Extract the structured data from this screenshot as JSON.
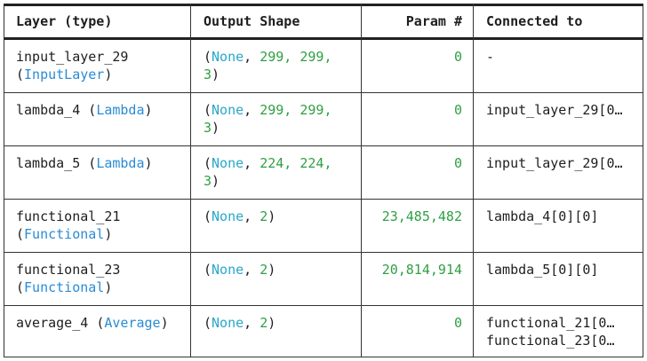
{
  "headers": {
    "layer": "Layer (type)",
    "output_shape": "Output Shape",
    "params": "Param #",
    "connected": "Connected to"
  },
  "rows": [
    {
      "layer_name": "input_layer_29",
      "layer_open": "(",
      "layer_type": "InputLayer",
      "layer_close": ")",
      "shape_none": "None",
      "shape_line1_rest": "299, 299,",
      "shape_line2": "3",
      "params": "0",
      "connected": "-",
      "connected2": ""
    },
    {
      "layer_name": "lambda_4",
      "layer_open": "(",
      "layer_type": "Lambda",
      "layer_close": ")",
      "shape_none": "None",
      "shape_line1_rest": "299, 299,",
      "shape_line2": "3",
      "params": "0",
      "connected": "input_layer_29[0…",
      "connected2": ""
    },
    {
      "layer_name": "lambda_5",
      "layer_open": "(",
      "layer_type": "Lambda",
      "layer_close": ")",
      "shape_none": "None",
      "shape_line1_rest": "224, 224,",
      "shape_line2": "3",
      "params": "0",
      "connected": "input_layer_29[0…",
      "connected2": ""
    },
    {
      "layer_name": "functional_21",
      "layer_open": "(",
      "layer_type": "Functional",
      "layer_close": ")",
      "shape_none": "None",
      "shape_line1_rest": "2",
      "shape_line2": "",
      "params": "23,485,482",
      "connected": "lambda_4[0][0]",
      "connected2": ""
    },
    {
      "layer_name": "functional_23",
      "layer_open": "(",
      "layer_type": "Functional",
      "layer_close": ")",
      "shape_none": "None",
      "shape_line1_rest": "2",
      "shape_line2": "",
      "params": "20,814,914",
      "connected": "lambda_5[0][0]",
      "connected2": ""
    },
    {
      "layer_name": "average_4",
      "layer_open": "(",
      "layer_type": "Average",
      "layer_close": ")",
      "shape_none": "None",
      "shape_line1_rest": "2",
      "shape_line2": "",
      "params": "0",
      "connected": "functional_21[0…",
      "connected2": "functional_23[0…"
    }
  ],
  "colors": {
    "layer_type": "#2a8bd4",
    "none": "#2aa7c9",
    "number": "#2fa043",
    "text": "#1e1e1e",
    "border": "#222222"
  }
}
